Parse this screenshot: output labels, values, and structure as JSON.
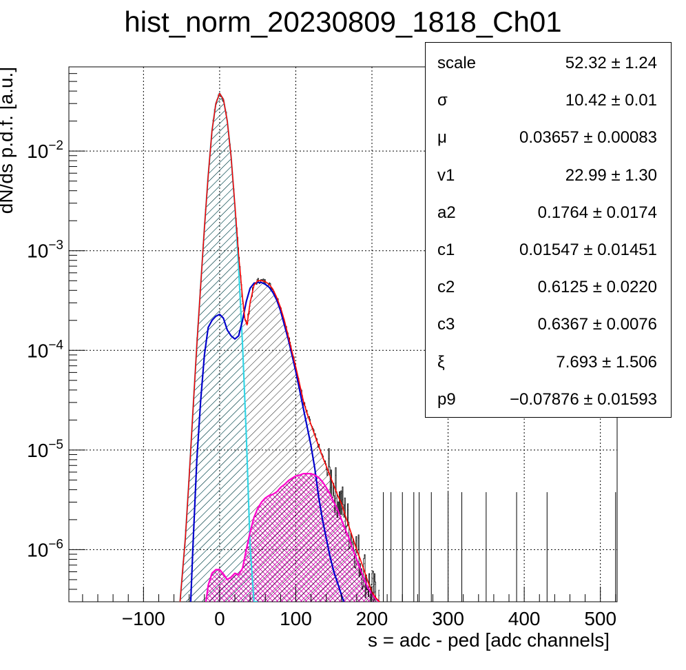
{
  "title": "hist_norm_20230809_1818_Ch01",
  "chart_data": {
    "type": "line",
    "title": "hist_norm_20230809_1818_Ch01",
    "xlabel": "s = adc - ped [adc channels]",
    "ylabel": "dN/ds p.d.f. [a.u.]",
    "xlim": [
      -198,
      522
    ],
    "ylim": [
      3e-07,
      0.07
    ],
    "yscale": "log",
    "grid": true,
    "x_ticks": [
      -100,
      0,
      100,
      200,
      300,
      400,
      500
    ],
    "x_tick_labels": [
      "−100",
      "0",
      "100",
      "200",
      "300",
      "400",
      "500"
    ],
    "y_ticks": [
      1e-06,
      1e-05,
      0.0001,
      0.001,
      0.01
    ],
    "y_tick_labels": [
      {
        "base": "10",
        "exp": "−6"
      },
      {
        "base": "10",
        "exp": "−5"
      },
      {
        "base": "10",
        "exp": "−4"
      },
      {
        "base": "10",
        "exp": "−3"
      },
      {
        "base": "10",
        "exp": "−2"
      }
    ],
    "colors": {
      "data": "#000000",
      "total_fit": "#ff0000",
      "pedestal": "#33d6e6",
      "single_pe": "#0000cc",
      "multi_pe": "#ff00cc"
    },
    "series": [
      {
        "id": "total_fit",
        "color": "#ff0000",
        "x": [
          -52,
          -45,
          -40,
          -35,
          -30,
          -25,
          -20,
          -15,
          -10,
          -5,
          0,
          5,
          10,
          15,
          20,
          25,
          30,
          33,
          36,
          40,
          45,
          50,
          55,
          60,
          65,
          70,
          75,
          80,
          85,
          90,
          95,
          100,
          105,
          110,
          115,
          120,
          125,
          130,
          135,
          140,
          145,
          150,
          155,
          160,
          165,
          170,
          175,
          180,
          185,
          190,
          195,
          200,
          205,
          210
        ],
        "y": [
          3e-07,
          1.3e-06,
          5.4e-06,
          2.5e-05,
          0.00011,
          0.00044,
          0.0017,
          0.0057,
          0.016,
          0.03,
          0.038,
          0.033,
          0.02,
          0.0088,
          0.0029,
          0.0009,
          0.00034,
          0.00021,
          0.00018,
          0.0003,
          0.00045,
          0.0005,
          0.0005,
          0.00049,
          0.00046,
          0.00041,
          0.00034,
          0.00027,
          0.0002,
          0.00014,
          9.8e-05,
          6.8e-05,
          4.6e-05,
          3.1e-05,
          2.3e-05,
          1.8e-05,
          1.4e-05,
          1.1e-05,
          8.6e-06,
          6.9e-06,
          5.5e-06,
          4.4e-06,
          3.5e-06,
          2.9e-06,
          2.2e-06,
          1.7e-06,
          1.3e-06,
          1e-06,
          7.9e-07,
          6.1e-07,
          4.7e-07,
          3.8e-07,
          3.3e-07,
          3e-07
        ]
      },
      {
        "id": "pedestal",
        "color": "#33d6e6",
        "filled": true,
        "x": [
          -52,
          -45,
          -40,
          -35,
          -30,
          -25,
          -20,
          -15,
          -10,
          -5,
          0,
          5,
          10,
          15,
          20,
          25,
          30,
          35,
          40,
          45,
          50
        ],
        "y": [
          3e-07,
          1.3e-06,
          5.4e-06,
          2.5e-05,
          0.00011,
          0.00044,
          0.0017,
          0.0057,
          0.016,
          0.03,
          0.038,
          0.033,
          0.02,
          0.0088,
          0.0028,
          0.00067,
          0.000115,
          1.4e-05,
          1.1e-06,
          3e-07,
          3e-07
        ]
      },
      {
        "id": "single_pe",
        "color": "#0000cc",
        "filled": true,
        "x": [
          -38,
          -35,
          -30,
          -25,
          -20,
          -15,
          -10,
          -5,
          0,
          5,
          10,
          15,
          20,
          25,
          30,
          35,
          40,
          45,
          50,
          55,
          60,
          65,
          70,
          75,
          80,
          85,
          90,
          95,
          100,
          105,
          110,
          115,
          120,
          125,
          130,
          135,
          140,
          145,
          150,
          155,
          160,
          163
        ],
        "y": [
          3e-07,
          1.1e-06,
          7.8e-06,
          3.1e-05,
          9e-05,
          0.00017,
          0.0002,
          0.00022,
          0.00023,
          0.00021,
          0.00016,
          0.00014,
          0.00013,
          0.00014,
          0.0002,
          0.00031,
          0.00042,
          0.00047,
          0.00048,
          0.00048,
          0.00046,
          0.00043,
          0.00038,
          0.00032,
          0.00025,
          0.00018,
          0.00013,
          9e-05,
          6.1e-05,
          4e-05,
          2.6e-05,
          1.7e-05,
          1.1e-05,
          6.5e-06,
          3.4e-06,
          2e-06,
          1.3e-06,
          8.5e-07,
          6e-07,
          4.6e-07,
          3.5e-07,
          3e-07
        ]
      },
      {
        "id": "multi_pe",
        "color": "#ff00cc",
        "filled": true,
        "x": [
          -18,
          -15,
          -10,
          -5,
          0,
          5,
          10,
          15,
          20,
          25,
          30,
          35,
          40,
          45,
          50,
          55,
          60,
          65,
          70,
          75,
          80,
          85,
          90,
          95,
          100,
          105,
          110,
          115,
          120,
          125,
          130,
          135,
          140,
          145,
          150,
          155,
          160,
          165,
          170,
          175,
          180,
          185,
          190,
          195,
          200,
          205,
          210
        ],
        "y": [
          3e-07,
          4.4e-07,
          5.8e-07,
          6.3e-07,
          6.3e-07,
          5.7e-07,
          5e-07,
          5.3e-07,
          5.8e-07,
          5.6e-07,
          6.5e-07,
          1e-06,
          1.5e-06,
          2.1e-06,
          2.6e-06,
          3e-06,
          3.3e-06,
          3.5e-06,
          3.6e-06,
          3.8e-06,
          4.2e-06,
          4.5e-06,
          4.9e-06,
          5.2e-06,
          5.5e-06,
          5.6e-06,
          5.8e-06,
          5.8e-06,
          5.8e-06,
          5.6e-06,
          5.3e-06,
          4.8e-06,
          4.2e-06,
          3.6e-06,
          3e-06,
          2.5e-06,
          2e-06,
          1.6e-06,
          1.3e-06,
          1e-06,
          8e-07,
          6.3e-07,
          5e-07,
          4.1e-07,
          3.6e-07,
          3.2e-07,
          3e-07
        ]
      }
    ],
    "stats": [
      {
        "name": "scale",
        "value": "52.32",
        "error": "1.24"
      },
      {
        "name": "σ",
        "value": "10.42",
        "error": "0.01"
      },
      {
        "name": "μ",
        "value": "0.03657",
        "error": "0.00083"
      },
      {
        "name": "v1",
        "value": "22.99",
        "error": "1.30"
      },
      {
        "name": "a2",
        "value": "0.1764",
        "error": "0.0174"
      },
      {
        "name": "c1",
        "value": "0.01547",
        "error": "0.01451"
      },
      {
        "name": "c2",
        "value": "0.6125",
        "error": "0.0220"
      },
      {
        "name": "c3",
        "value": "0.6367",
        "error": "0.0076"
      },
      {
        "name": "ξ",
        "value": "7.693",
        "error": "1.506"
      },
      {
        "name": "p9",
        "value": "−0.07876",
        "error": "0.01593"
      }
    ]
  }
}
